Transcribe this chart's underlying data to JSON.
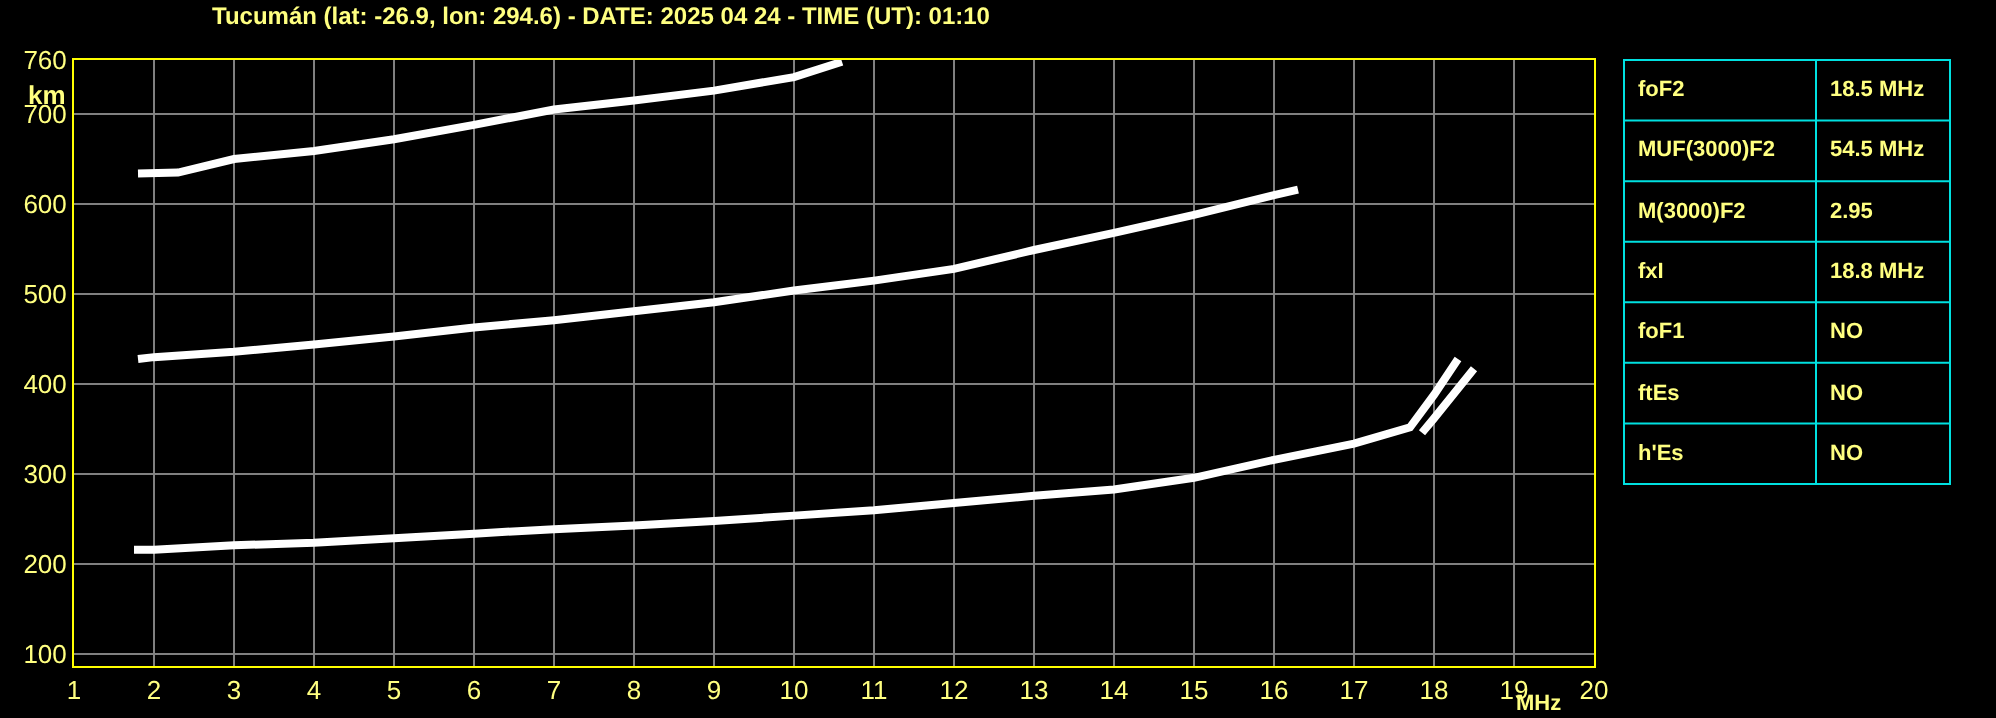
{
  "chart_data": [
    {
      "type": "line",
      "title": "Tucumán (lat: -26.9, lon: 294.6) - DATE: 2025 04 24 - TIME (UT): 01:10",
      "xlabel": "MHz",
      "ylabel": "km",
      "xlim": [
        1,
        20
      ],
      "xticks": [
        1,
        2,
        3,
        4,
        5,
        6,
        7,
        8,
        9,
        10,
        11,
        12,
        13,
        14,
        15,
        16,
        17,
        18,
        19,
        20
      ],
      "ylim": [
        87,
        760
      ],
      "yticks": [
        100,
        200,
        300,
        400,
        500,
        600,
        700,
        760
      ],
      "grid": true,
      "marker": "none",
      "line_style": "solid",
      "series": [
        {
          "color": "#ffffff",
          "x": [
            1.75,
            2,
            3,
            4,
            5,
            6,
            7,
            8,
            9,
            10,
            11,
            12,
            13,
            14,
            15,
            16,
            17,
            17.7,
            18,
            18.3
          ],
          "values": [
            216,
            216,
            221,
            224,
            229,
            234,
            239,
            243,
            248,
            254,
            260,
            268,
            276,
            283,
            296,
            316,
            334,
            352,
            388,
            428
          ]
        },
        {
          "color": "#ffffff",
          "x": [
            17.85,
            18,
            18.5
          ],
          "values": [
            346,
            362,
            417
          ]
        },
        {
          "color": "#ffffff",
          "x": [
            1.8,
            2,
            3,
            4,
            5,
            6,
            7,
            8,
            9,
            10,
            11,
            12,
            13,
            14,
            15,
            16,
            16.3
          ],
          "values": [
            428,
            430,
            436,
            444,
            453,
            463,
            471,
            481,
            491,
            504,
            515,
            528,
            549,
            568,
            588,
            610,
            616
          ]
        },
        {
          "color": "#ffffff",
          "x": [
            1.8,
            2.3,
            3,
            4,
            5,
            6,
            7,
            8,
            9,
            10,
            10.6
          ],
          "values": [
            634,
            635,
            650,
            659,
            672,
            688,
            705,
            715,
            726,
            741,
            758
          ]
        }
      ]
    },
    {
      "type": "other",
      "annotations": [
        "foF2",
        "18.5 MHz",
        "MUF(3000)F2",
        "54.5 MHz",
        "M(3000)F2",
        "2.95",
        "fxI",
        "18.8 MHz",
        "foF1",
        "NO",
        "ftEs",
        "NO",
        "h'Es",
        "NO"
      ]
    }
  ]
}
